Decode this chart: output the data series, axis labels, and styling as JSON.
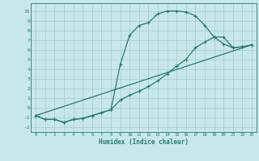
{
  "xlabel": "Humidex (Indice chaleur)",
  "background_color": "#c8e8e8",
  "grid_color": "#aacfcf",
  "line_color": "#2a7a6a",
  "xlim": [
    -0.5,
    23.5
  ],
  "ylim": [
    -2.5,
    10.8
  ],
  "xticks": [
    0,
    1,
    2,
    3,
    4,
    5,
    6,
    7,
    8,
    9,
    10,
    11,
    12,
    13,
    14,
    15,
    16,
    17,
    18,
    19,
    20,
    21,
    22,
    23
  ],
  "yticks": [
    -2,
    -1,
    0,
    1,
    2,
    3,
    4,
    5,
    6,
    7,
    8,
    9,
    10
  ],
  "line1_x": [
    0,
    1,
    2,
    3,
    4,
    5,
    6,
    7,
    8,
    9,
    10,
    11,
    12,
    13,
    14,
    15,
    16,
    17,
    18,
    19,
    20,
    21,
    22,
    23
  ],
  "line1_y": [
    -0.8,
    -1.2,
    -1.2,
    -1.5,
    -1.2,
    -1.1,
    -0.8,
    -0.5,
    -0.2,
    4.5,
    7.5,
    8.5,
    8.8,
    9.7,
    10.0,
    10.0,
    9.9,
    9.5,
    8.5,
    7.3,
    6.6,
    6.2,
    6.3,
    6.5
  ],
  "line2_x": [
    0,
    1,
    2,
    3,
    4,
    5,
    6,
    7,
    8,
    9,
    10,
    11,
    12,
    13,
    14,
    15,
    16,
    17,
    18,
    19,
    20,
    21,
    22,
    23
  ],
  "line2_y": [
    -0.8,
    -1.2,
    -1.2,
    -1.5,
    -1.2,
    -1.1,
    -0.8,
    -0.5,
    -0.2,
    0.8,
    1.3,
    1.7,
    2.2,
    2.8,
    3.5,
    4.3,
    5.0,
    6.2,
    6.8,
    7.3,
    7.3,
    6.2,
    6.3,
    6.5
  ],
  "line3_x": [
    0,
    23
  ],
  "line3_y": [
    -0.8,
    6.5
  ],
  "marker": "+",
  "markersize": 3,
  "markeredgewidth": 0.8,
  "linewidth": 0.9
}
